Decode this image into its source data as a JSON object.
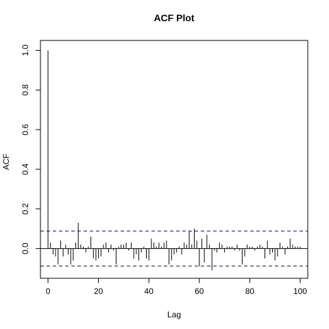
{
  "chart_data": {
    "type": "bar",
    "title": "ACF Plot",
    "xlabel": "Lag",
    "ylabel": "ACF",
    "xlim": [
      -3,
      103
    ],
    "ylim": [
      -0.15,
      1.05
    ],
    "x_ticks": [
      0,
      20,
      40,
      60,
      80,
      100
    ],
    "x_tick_labels": [
      "0",
      "20",
      "40",
      "60",
      "80",
      "100"
    ],
    "y_ticks": [
      0.0,
      0.2,
      0.4,
      0.6,
      0.8,
      1.0
    ],
    "y_tick_labels": [
      "0.0",
      "0.2",
      "0.4",
      "0.6",
      "0.8",
      "1.0"
    ],
    "confidence_bound": 0.088,
    "confidence_color": "#00008b",
    "bar_color": "#000000",
    "grid": false,
    "x": [
      0,
      1,
      2,
      3,
      4,
      5,
      6,
      7,
      8,
      9,
      10,
      11,
      12,
      13,
      14,
      15,
      16,
      17,
      18,
      19,
      20,
      21,
      22,
      23,
      24,
      25,
      26,
      27,
      28,
      29,
      30,
      31,
      32,
      33,
      34,
      35,
      36,
      37,
      38,
      39,
      40,
      41,
      42,
      43,
      44,
      45,
      46,
      47,
      48,
      49,
      50,
      51,
      52,
      53,
      54,
      55,
      56,
      57,
      58,
      59,
      60,
      61,
      62,
      63,
      64,
      65,
      66,
      67,
      68,
      69,
      70,
      71,
      72,
      73,
      74,
      75,
      76,
      77,
      78,
      79,
      80,
      81,
      82,
      83,
      84,
      85,
      86,
      87,
      88,
      89,
      90,
      91,
      92,
      93,
      94,
      95,
      96,
      97,
      98,
      99,
      100
    ],
    "values": [
      1.0,
      0.03,
      -0.03,
      -0.04,
      -0.08,
      0.04,
      -0.04,
      0.02,
      -0.03,
      -0.08,
      -0.06,
      0.03,
      0.13,
      0.02,
      0.01,
      -0.02,
      0.01,
      0.06,
      -0.05,
      -0.06,
      -0.05,
      -0.04,
      0.02,
      0.03,
      -0.02,
      0.02,
      -0.01,
      -0.08,
      0.01,
      0.02,
      0.02,
      0.03,
      -0.01,
      0.03,
      -0.05,
      -0.03,
      -0.06,
      -0.02,
      0.01,
      -0.05,
      -0.06,
      0.05,
      0.03,
      0.01,
      0.03,
      0.01,
      0.03,
      0.04,
      -0.08,
      -0.06,
      -0.03,
      -0.02,
      0.01,
      -0.03,
      0.03,
      0.02,
      0.09,
      0.02,
      0.1,
      0.04,
      -0.09,
      0.05,
      -0.07,
      0.07,
      0.02,
      -0.11,
      -0.01,
      -0.02,
      0.03,
      0.02,
      -0.02,
      0.01,
      0.01,
      0.01,
      -0.01,
      0.02,
      -0.01,
      -0.08,
      -0.04,
      0.02,
      0.01,
      0.01,
      -0.01,
      0.01,
      0.02,
      0.01,
      -0.05,
      0.04,
      -0.03,
      -0.02,
      -0.06,
      -0.04,
      0.03,
      0.01,
      -0.03,
      0.01,
      0.05,
      0.02,
      0.01,
      0.01,
      0.01
    ]
  }
}
